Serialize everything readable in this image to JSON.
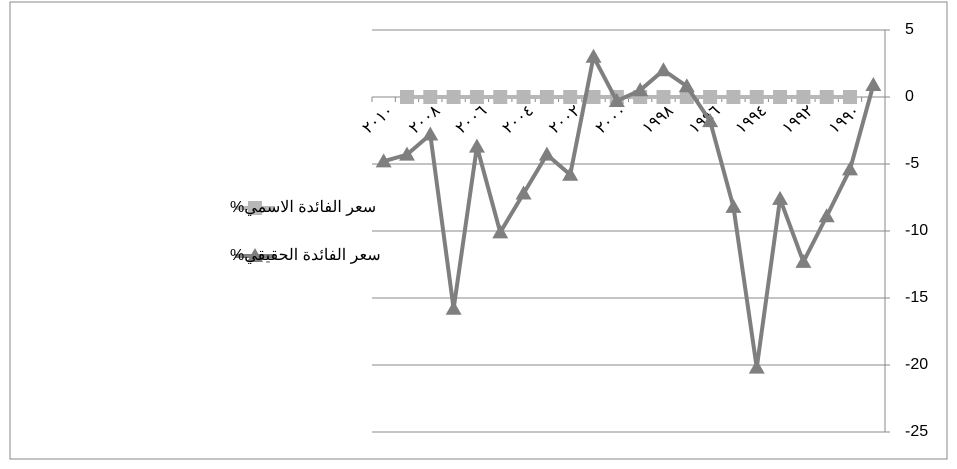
{
  "chart_data": {
    "type": "line",
    "categories": [
      "٢٠١٠",
      null,
      "٢٠٠٨",
      null,
      "٢٠٠٦",
      null,
      "٢٠٠٤",
      null,
      "٢٠٠٢",
      null,
      "٢٠٠٠",
      null,
      "١٩٩٨",
      null,
      "١٩٩٦",
      null,
      "١٩٩٤",
      null,
      "١٩٩٢",
      null,
      "١٩٩٠",
      null
    ],
    "series": [
      {
        "name": "سعر الفائدة الاسمي%",
        "color": "#b7b7b7",
        "marker": "square",
        "values": [
          null,
          0,
          0,
          0,
          0,
          0,
          0,
          0,
          0,
          0,
          0,
          0,
          0,
          0,
          0,
          0,
          0,
          0,
          0,
          0,
          0,
          null
        ]
      },
      {
        "name": "سعر الفائدة الحقيقي%",
        "color": "#7f7f7f",
        "marker": "triangle",
        "values": [
          -4.8,
          -4.3,
          -2.8,
          -15.8,
          -3.7,
          -10.1,
          -7.2,
          -4.3,
          -5.8,
          3,
          -0.3,
          0.5,
          2,
          0.8,
          -1.8,
          -8.2,
          -20.2,
          -7.6,
          -12.3,
          -8.9,
          -5.4,
          0.9
        ]
      }
    ],
    "ylim": [
      -25,
      5
    ],
    "yticks": [
      -25,
      -20,
      -15,
      -10,
      -5,
      0,
      5
    ],
    "grid": true,
    "y_axis_side": "right",
    "legend": "left"
  }
}
